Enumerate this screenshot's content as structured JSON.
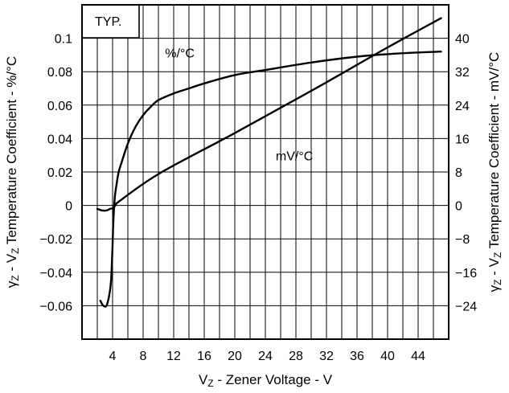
{
  "chart_data": {
    "type": "line",
    "xlabel_main": "V",
    "xlabel_sub": "Z",
    "xlabel_rest": " - Zener Voltage - V",
    "ylabel_left": {
      "gamma": "γ",
      "gamma_sub": "Z",
      "sep": " - V",
      "v_sub": "Z",
      "rest": " Temperature Coefficient - %/°C"
    },
    "ylabel_right": {
      "gamma": "γ",
      "gamma_sub": "Z",
      "sep": " - V",
      "v_sub": "Z",
      "rest": " Temperature Coefficient - mV/°C"
    },
    "annotation": "TYP.",
    "xlim": [
      0,
      48
    ],
    "x_ticks": [
      4,
      8,
      12,
      16,
      20,
      24,
      28,
      32,
      36,
      40,
      44
    ],
    "x_tick_labels": [
      "4",
      "8",
      "12",
      "16",
      "20",
      "24",
      "28",
      "32",
      "36",
      "40",
      "44"
    ],
    "y_left": {
      "unit": "%/°C",
      "lim": [
        -0.08,
        0.12
      ],
      "ticks": [
        0.1,
        0.08,
        0.06,
        0.04,
        0.02,
        0,
        -0.02,
        -0.04,
        -0.06
      ],
      "tick_labels": [
        "0.1",
        "0.08",
        "0.06",
        "0.04",
        "0.02",
        "0",
        "−0.02",
        "−0.04",
        "−0.06"
      ]
    },
    "y_right": {
      "unit": "mV/°C",
      "lim": [
        -32,
        48
      ],
      "ticks": [
        40,
        32,
        24,
        16,
        8,
        0,
        -8,
        -16,
        -24
      ],
      "tick_labels": [
        "40",
        "32",
        "24",
        "16",
        "8",
        "0",
        "−8",
        "−16",
        "−24"
      ]
    },
    "series": [
      {
        "name": "%/°C",
        "axis": "left",
        "x": [
          2.4,
          2.8,
          3.3,
          3.8,
          4.1,
          4.3,
          4.5,
          4.8,
          5.2,
          6,
          7,
          8,
          9,
          10,
          12,
          14,
          16,
          20,
          24,
          30,
          36,
          40,
          44,
          47
        ],
        "y": [
          -0.057,
          -0.06,
          -0.059,
          -0.045,
          -0.01,
          0.005,
          0.012,
          0.02,
          0.026,
          0.037,
          0.047,
          0.054,
          0.059,
          0.063,
          0.067,
          0.07,
          0.073,
          0.078,
          0.081,
          0.0855,
          0.089,
          0.0905,
          0.0915,
          0.092
        ]
      },
      {
        "name": "%/°C",
        "axis": "left",
        "x": [
          2.0,
          2.6,
          3.2,
          3.7,
          4.1,
          4.5
        ],
        "y": [
          -0.002,
          -0.003,
          -0.003,
          -0.002,
          -0.0015,
          0.001
        ]
      },
      {
        "name": "mV/°C",
        "axis": "right",
        "x": [
          4.5,
          10,
          20,
          30,
          40,
          47
        ],
        "y": [
          0.5,
          7.5,
          17.3,
          27.4,
          37.8,
          44.8
        ]
      }
    ],
    "series_labels": [
      {
        "text": "%/°C",
        "x": 12.8,
        "y_left": 0.0885
      },
      {
        "text": "mV/°C",
        "x": 27.8,
        "y_left": 0.027
      }
    ]
  }
}
